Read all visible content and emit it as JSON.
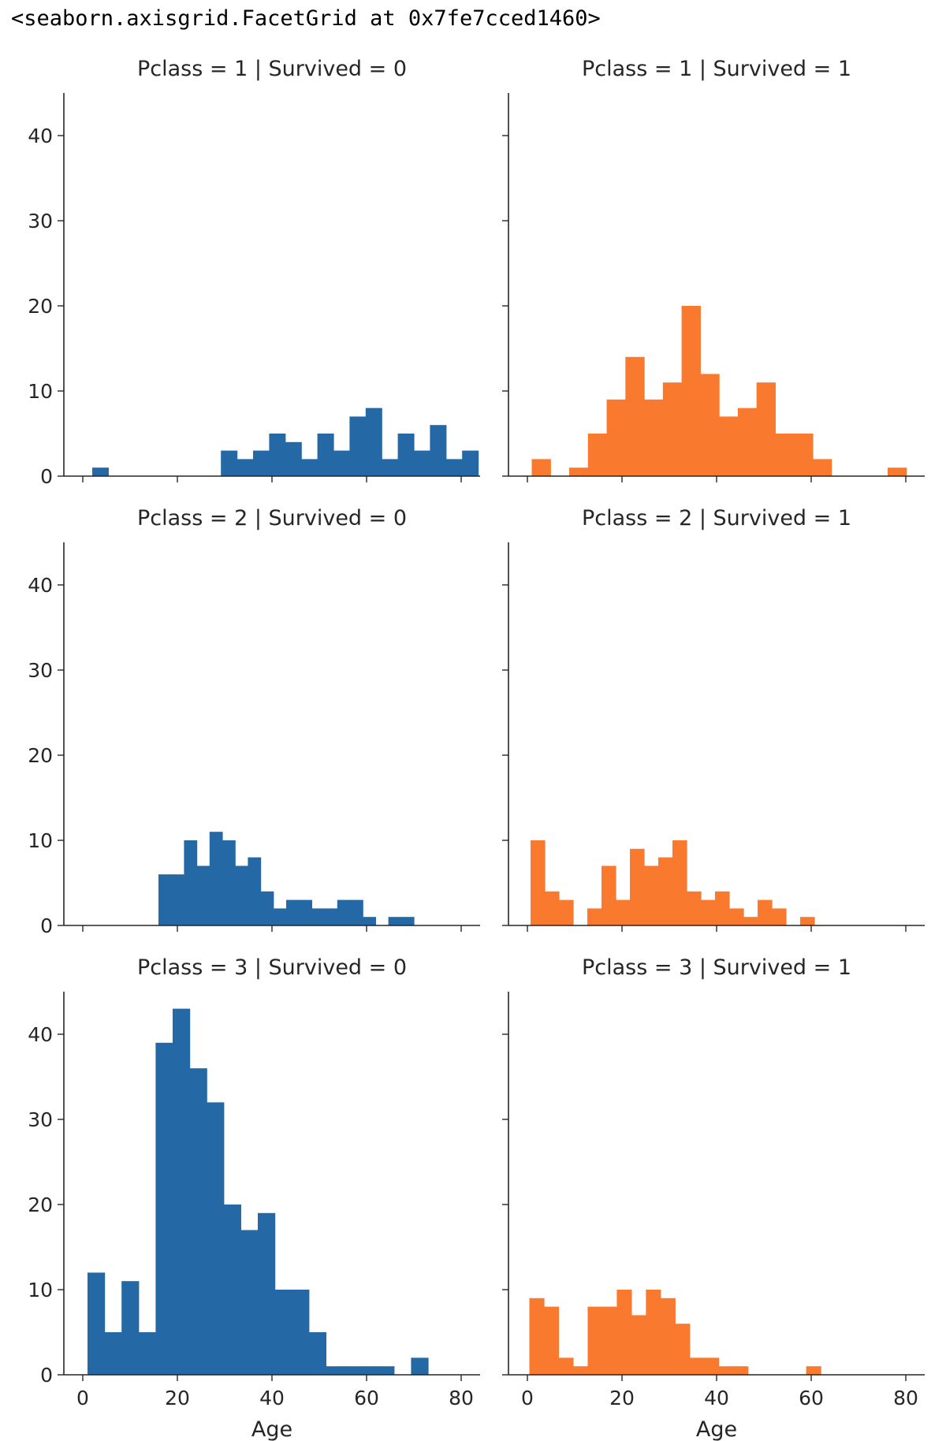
{
  "output_repr": "<seaborn.axisgrid.FacetGrid at 0x7fe7cced1460>",
  "colors": {
    "survived_0": "#2469a6",
    "survived_1": "#f97a2f",
    "axis": "#262626"
  },
  "chart_data": {
    "type": "bar",
    "xlabel": "Age",
    "ylabel": "",
    "xlim": [
      -4,
      84
    ],
    "ylim": [
      0,
      45
    ],
    "xticks": [
      0,
      20,
      40,
      60,
      80
    ],
    "yticks": [
      0,
      10,
      20,
      30,
      40
    ],
    "legend": "none",
    "grid": false,
    "panels": [
      {
        "title": "Pclass = 1 | Survived = 0",
        "row": 0,
        "col": 0,
        "survived": 0,
        "bin_start": 2,
        "bin_width": 3.4,
        "values": [
          1,
          0,
          0,
          0,
          0,
          0,
          0,
          0,
          3,
          2,
          3,
          5,
          4,
          2,
          5,
          3,
          7,
          8,
          2,
          5,
          3,
          6,
          2,
          3
        ]
      },
      {
        "title": "Pclass = 1 | Survived = 1",
        "row": 0,
        "col": 1,
        "survived": 1,
        "bin_start": 0.92,
        "bin_width": 3.96,
        "values": [
          2,
          0,
          1,
          5,
          9,
          14,
          9,
          11,
          20,
          12,
          7,
          8,
          11,
          5,
          5,
          2,
          0,
          0,
          0,
          1
        ]
      },
      {
        "title": "Pclass = 2 | Survived = 0",
        "row": 1,
        "col": 0,
        "survived": 0,
        "bin_start": 16,
        "bin_width": 2.7,
        "values": [
          6,
          6,
          10,
          7,
          11,
          10,
          7,
          8,
          4,
          2,
          3,
          3,
          2,
          2,
          3,
          3,
          1,
          0,
          1,
          1
        ]
      },
      {
        "title": "Pclass = 2 | Survived = 1",
        "row": 1,
        "col": 1,
        "survived": 1,
        "bin_start": 0.67,
        "bin_width": 3.0,
        "values": [
          10,
          4,
          3,
          0,
          2,
          7,
          3,
          9,
          7,
          8,
          10,
          4,
          3,
          4,
          2,
          1,
          3,
          2,
          0,
          1
        ]
      },
      {
        "title": "Pclass = 3 | Survived = 0",
        "row": 2,
        "col": 0,
        "survived": 0,
        "bin_start": 1,
        "bin_width": 3.6,
        "values": [
          12,
          5,
          11,
          5,
          39,
          43,
          36,
          32,
          20,
          17,
          19,
          10,
          10,
          5,
          1,
          1,
          1,
          1,
          0,
          2
        ]
      },
      {
        "title": "Pclass = 3 | Survived = 1",
        "row": 2,
        "col": 1,
        "survived": 1,
        "bin_start": 0.42,
        "bin_width": 3.08,
        "values": [
          9,
          8,
          2,
          1,
          8,
          8,
          10,
          7,
          10,
          9,
          6,
          2,
          2,
          1,
          1,
          0,
          0,
          0,
          0,
          1
        ]
      }
    ]
  }
}
